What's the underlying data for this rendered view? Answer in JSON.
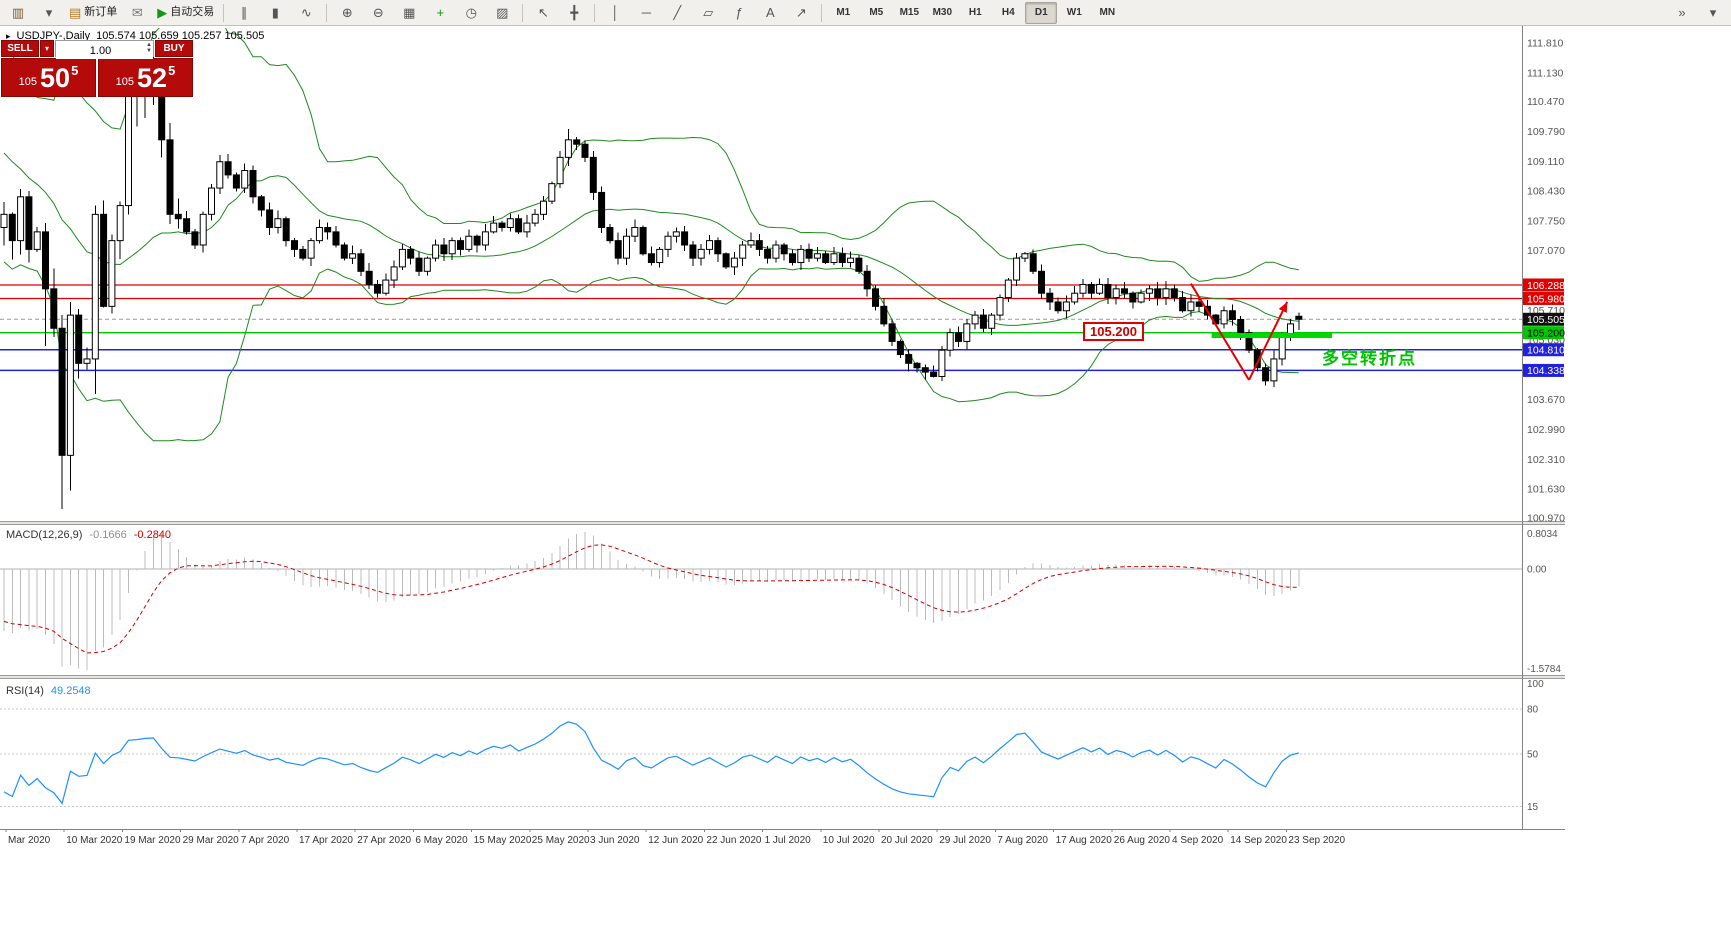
{
  "symbol_info": {
    "collapse_icon": "▸",
    "name": "USDJPY-,Daily",
    "ohlc": "105.574 105.659 105.257 105.505"
  },
  "trade_panel": {
    "sell_label": "SELL",
    "buy_label": "BUY",
    "volume": "1.00",
    "sell_price": {
      "small": "105",
      "big": "50",
      "sup": "5"
    },
    "buy_price": {
      "small": "105",
      "big": "52",
      "sup": "5"
    },
    "accent": "#b40a0a"
  },
  "toolbar": {
    "groups": [
      {
        "items": [
          {
            "name": "new-chart",
            "glyph": "▥",
            "glyph_color": "#7a5c2e"
          },
          {
            "name": "chart-list",
            "glyph": "▾",
            "glyph_color": "#555555"
          },
          {
            "name": "new-order",
            "glyph": "▤",
            "label": "新订单",
            "glyph_color": "#b7791f"
          },
          {
            "name": "mailbox",
            "glyph": "✉",
            "glyph_color": "#777777"
          },
          {
            "name": "autotrading",
            "glyph": "▶",
            "label": "自动交易",
            "glyph_color": "#119911"
          }
        ]
      },
      {
        "items": [
          {
            "name": "bar-chart",
            "glyph": "∥"
          },
          {
            "name": "candlestick-chart",
            "glyph": "▮"
          },
          {
            "name": "line-chart",
            "glyph": "∿"
          }
        ]
      },
      {
        "items": [
          {
            "name": "zoom-in",
            "glyph": "⊕"
          },
          {
            "name": "zoom-out",
            "glyph": "⊖"
          },
          {
            "name": "tile-windows",
            "glyph": "▦"
          },
          {
            "name": "indicators-add",
            "glyph": "+",
            "glyph_color": "#0a9a0a"
          },
          {
            "name": "periods",
            "glyph": "◷"
          },
          {
            "name": "templates",
            "glyph": "▨"
          }
        ]
      },
      {
        "items": [
          {
            "name": "cursor",
            "glyph": "↖"
          },
          {
            "name": "crosshair",
            "glyph": "╋"
          }
        ]
      },
      {
        "items": [
          {
            "name": "vertical-line",
            "glyph": "│"
          },
          {
            "name": "horizontal-line",
            "glyph": "─"
          },
          {
            "name": "trend-line",
            "glyph": "╱"
          },
          {
            "name": "equidistant-channel",
            "glyph": "▱"
          },
          {
            "name": "fibonacci",
            "glyph": "ƒ"
          },
          {
            "name": "text",
            "glyph": "A"
          },
          {
            "name": "arrows",
            "glyph": "↗"
          }
        ]
      }
    ],
    "timeframes": {
      "items": [
        "M1",
        "M5",
        "M15",
        "M30",
        "H1",
        "H4",
        "D1",
        "W1",
        "MN"
      ],
      "active": "D1"
    },
    "right_items": [
      {
        "name": "toolbars-overflow",
        "glyph": "»"
      },
      {
        "name": "customize",
        "glyph": "▾"
      }
    ]
  },
  "chart_data": {
    "type": "candlestick",
    "symbol": "USDJPY-",
    "timeframe": "Daily",
    "pre_closes": [
      111.3,
      111.6,
      111.2,
      110.4,
      109.9,
      110.3,
      109.9,
      109.7,
      110.0,
      109.6,
      109.2,
      108.9,
      108.5,
      108.3,
      107.9,
      108.1,
      108.0,
      107.7,
      107.6
    ],
    "closes": [
      107.9,
      107.3,
      108.3,
      107.1,
      107.5,
      106.2,
      105.3,
      102.4,
      105.6,
      104.5,
      104.6,
      107.9,
      105.8,
      107.3,
      108.1,
      110.7,
      110.9,
      111.2,
      111.3,
      109.6,
      107.9,
      107.8,
      107.5,
      107.2,
      107.9,
      108.5,
      109.1,
      108.8,
      108.5,
      108.9,
      108.3,
      108.0,
      107.6,
      107.8,
      107.3,
      107.1,
      106.9,
      107.3,
      107.6,
      107.5,
      107.2,
      106.9,
      107.0,
      106.6,
      106.3,
      106.1,
      106.4,
      106.7,
      107.1,
      106.9,
      106.6,
      106.9,
      107.2,
      107.0,
      107.3,
      107.1,
      107.4,
      107.2,
      107.5,
      107.7,
      107.6,
      107.8,
      107.5,
      107.7,
      107.9,
      108.2,
      108.6,
      109.2,
      109.6,
      109.5,
      109.2,
      108.4,
      107.6,
      107.3,
      106.9,
      107.4,
      107.6,
      107.0,
      106.8,
      107.1,
      107.4,
      107.5,
      107.2,
      106.9,
      107.1,
      107.3,
      107.0,
      106.7,
      106.9,
      107.2,
      107.3,
      107.1,
      106.9,
      107.2,
      107.0,
      106.8,
      107.1,
      106.9,
      107.0,
      106.8,
      107.0,
      106.8,
      106.9,
      106.6,
      106.2,
      105.8,
      105.4,
      105.0,
      104.7,
      104.5,
      104.4,
      104.3,
      104.2,
      104.8,
      105.2,
      105.0,
      105.4,
      105.6,
      105.3,
      105.6,
      106.0,
      106.4,
      106.9,
      107.0,
      106.6,
      106.1,
      105.9,
      105.7,
      105.9,
      106.1,
      106.3,
      106.1,
      106.3,
      106.0,
      106.2,
      106.1,
      105.9,
      106.1,
      106.2,
      106.0,
      106.2,
      106.0,
      105.7,
      105.9,
      105.8,
      105.6,
      105.4,
      105.7,
      105.5,
      105.2,
      104.8,
      104.4,
      104.1,
      104.6,
      105.1,
      105.4,
      105.505
    ],
    "ohlc_overrides": {
      "5": [
        107.5,
        107.7,
        104.9,
        106.2
      ],
      "7": [
        105.3,
        105.6,
        101.18,
        102.4
      ],
      "8": [
        102.4,
        105.9,
        101.6,
        105.6
      ],
      "11": [
        104.6,
        108.1,
        103.8,
        107.9
      ],
      "15": [
        108.1,
        111.0,
        107.9,
        110.7
      ],
      "16": [
        110.7,
        111.5,
        109.9,
        110.9
      ],
      "17": [
        110.9,
        111.71,
        110.1,
        111.2
      ],
      "18": [
        111.2,
        111.8,
        110.4,
        111.3
      ],
      "19": [
        111.3,
        111.4,
        109.2,
        109.6
      ],
      "68": [
        109.2,
        109.85,
        109.0,
        109.6
      ],
      "112": [
        104.3,
        104.45,
        104.18,
        104.2
      ],
      "152": [
        104.4,
        104.5,
        103.99,
        104.1
      ],
      "156": [
        105.574,
        105.659,
        105.257,
        105.505
      ]
    },
    "bollinger": {
      "period": 20,
      "deviation": 2,
      "color": "#1f8a1f"
    },
    "price_axis_ticks": [
      "111.810",
      "111.130",
      "110.470",
      "109.790",
      "109.110",
      "108.430",
      "107.750",
      "107.070",
      "105.710",
      "105.030",
      "103.670",
      "102.990",
      "102.310",
      "101.630",
      "100.970"
    ],
    "price_markers": [
      {
        "text": "106.288",
        "price": 106.288,
        "bg": "#e00000",
        "fg": "#ffffff",
        "line_color": "#e00000",
        "line_width": 1.2
      },
      {
        "text": "105.980",
        "price": 105.98,
        "bg": "#e00000",
        "fg": "#ffffff",
        "line_color": "#e00000",
        "line_width": 1.2
      },
      {
        "text": "105.505",
        "price": 105.505,
        "bg": "#101010",
        "fg": "#ffffff",
        "line_color": "#9a9a9a",
        "line_width": 1,
        "line_dash": "4 3"
      },
      {
        "text": "105.200",
        "price": 105.2,
        "bg": "#00c800",
        "fg": "#000000",
        "line_color": "#00c800",
        "line_width": 1.4
      },
      {
        "text": "104.810",
        "price": 104.81,
        "bg": "#2020dd",
        "fg": "#ffffff",
        "line_color": "#2020dd",
        "line_width": 1.5
      },
      {
        "text": "104.338",
        "price": 104.338,
        "bg": "#2020dd",
        "fg": "#ffffff",
        "line_color": "#2020dd",
        "line_width": 1.5
      }
    ],
    "support_segment": {
      "t1": 145.5,
      "t2": 160,
      "price": 105.135,
      "color": "#00d900",
      "width": 5
    },
    "trend_lines": [
      {
        "t1": 143,
        "p1": 106.32,
        "t2": 150,
        "p2": 104.12,
        "arrow": false
      },
      {
        "t1": 150,
        "p1": 104.12,
        "t2": 154.6,
        "p2": 105.9,
        "arrow": true
      }
    ],
    "trend_color": "#e60000",
    "annotations": {
      "price_note": "105.200",
      "turning_point": "多空转折点"
    },
    "macd": {
      "label": "MACD(12,26,9)",
      "value_main": "-0.1666",
      "value_signal": "-0.2840",
      "fast": 12,
      "slow": 26,
      "signal": 9,
      "axis_labels": [
        "0.8034",
        "0.00",
        "-1.5784"
      ],
      "histogram_color": "#bcbcbc",
      "signal_color": "#d00000"
    },
    "rsi": {
      "label": "RSI(14)",
      "value": "49.2548",
      "period": 14,
      "color": "#1e90ff",
      "levels": [
        80,
        50,
        15
      ],
      "axis_labels": [
        "100",
        "80",
        "50",
        "15"
      ]
    },
    "time_axis": [
      "Mar 2020",
      "10 Mar 2020",
      "19 Mar 2020",
      "29 Mar 2020",
      "7 Apr 2020",
      "17 Apr 2020",
      "27 Apr 2020",
      "6 May 2020",
      "15 May 2020",
      "25 May 2020",
      "3 Jun 2020",
      "12 Jun 2020",
      "22 Jun 2020",
      "1 Jul 2020",
      "10 Jul 2020",
      "20 Jul 2020",
      "29 Jul 2020",
      "7 Aug 2020",
      "17 Aug 2020",
      "26 Aug 2020",
      "4 Sep 2020",
      "14 Sep 2020",
      "23 Sep 2020"
    ]
  }
}
